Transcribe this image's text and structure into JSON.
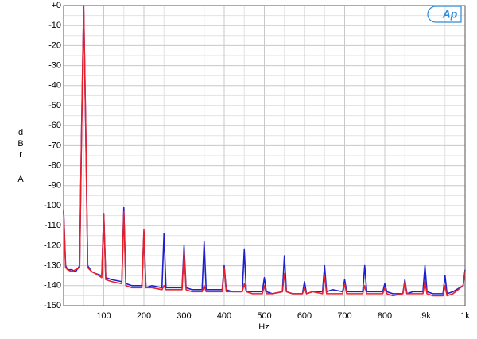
{
  "chart_data": {
    "type": "line",
    "logo": "Ap",
    "xlabel": "Hz",
    "ylabel": "dBr",
    "ylabel_unit": "A",
    "xlim": [
      0,
      1000
    ],
    "ylim": [
      -150,
      0
    ],
    "xticks": [
      100,
      200,
      300,
      400,
      500,
      600,
      700,
      800,
      {
        "value": 900,
        "label": ".9k"
      },
      {
        "value": 1000,
        "label": "1k"
      }
    ],
    "yticks": [
      {
        "value": 0,
        "label": "+0"
      },
      -10,
      -20,
      -30,
      -40,
      -50,
      -60,
      -70,
      -80,
      -90,
      -100,
      -110,
      -120,
      -130,
      -140,
      -150
    ],
    "grid": true,
    "x": [
      0,
      5,
      10,
      20,
      30,
      40,
      45,
      50,
      55,
      60,
      70,
      80,
      95,
      100,
      105,
      120,
      145,
      150,
      155,
      170,
      195,
      200,
      205,
      220,
      245,
      250,
      255,
      270,
      295,
      300,
      305,
      320,
      345,
      350,
      355,
      370,
      395,
      400,
      405,
      420,
      445,
      450,
      455,
      470,
      495,
      500,
      505,
      520,
      545,
      550,
      555,
      570,
      595,
      600,
      605,
      620,
      645,
      650,
      655,
      670,
      695,
      700,
      705,
      720,
      745,
      750,
      755,
      770,
      795,
      800,
      805,
      820,
      845,
      850,
      855,
      870,
      895,
      900,
      905,
      920,
      945,
      950,
      955,
      970,
      995,
      1000
    ],
    "series": [
      {
        "color": "#1f1fd0",
        "values": [
          -102,
          -130,
          -132,
          -132,
          -133,
          -130,
          -60,
          0,
          -60,
          -130,
          -133,
          -134,
          -135,
          -104,
          -136,
          -137,
          -138,
          -101,
          -139,
          -140,
          -140,
          -113,
          -141,
          -140,
          -141,
          -114,
          -141,
          -141,
          -141,
          -120,
          -141,
          -142,
          -142,
          -118,
          -142,
          -142,
          -142,
          -130,
          -142,
          -143,
          -143,
          -122,
          -143,
          -143,
          -143,
          -136,
          -143,
          -144,
          -143,
          -125,
          -143,
          -144,
          -144,
          -138,
          -144,
          -143,
          -143,
          -130,
          -143,
          -142,
          -143,
          -137,
          -143,
          -143,
          -143,
          -130,
          -143,
          -143,
          -143,
          -139,
          -143,
          -144,
          -144,
          -137,
          -144,
          -143,
          -143,
          -130,
          -143,
          -144,
          -144,
          -135,
          -144,
          -143,
          -140,
          -132
        ]
      },
      {
        "color": "#e8202a",
        "values": [
          -103,
          -131,
          -132,
          -133,
          -132,
          -131,
          -60,
          0,
          -60,
          -131,
          -133,
          -134,
          -136,
          -104,
          -137,
          -138,
          -139,
          -103,
          -140,
          -141,
          -141,
          -112,
          -141,
          -141,
          -142,
          -140,
          -142,
          -142,
          -142,
          -123,
          -142,
          -143,
          -143,
          -140,
          -143,
          -143,
          -143,
          -131,
          -143,
          -143,
          -143,
          -139,
          -143,
          -144,
          -144,
          -140,
          -144,
          -144,
          -143,
          -134,
          -143,
          -144,
          -144,
          -141,
          -144,
          -143,
          -144,
          -135,
          -144,
          -144,
          -144,
          -139,
          -144,
          -144,
          -144,
          -140,
          -144,
          -144,
          -144,
          -141,
          -144,
          -145,
          -144,
          -138,
          -144,
          -144,
          -144,
          -138,
          -144,
          -145,
          -145,
          -140,
          -145,
          -144,
          -140,
          -133
        ]
      }
    ]
  }
}
